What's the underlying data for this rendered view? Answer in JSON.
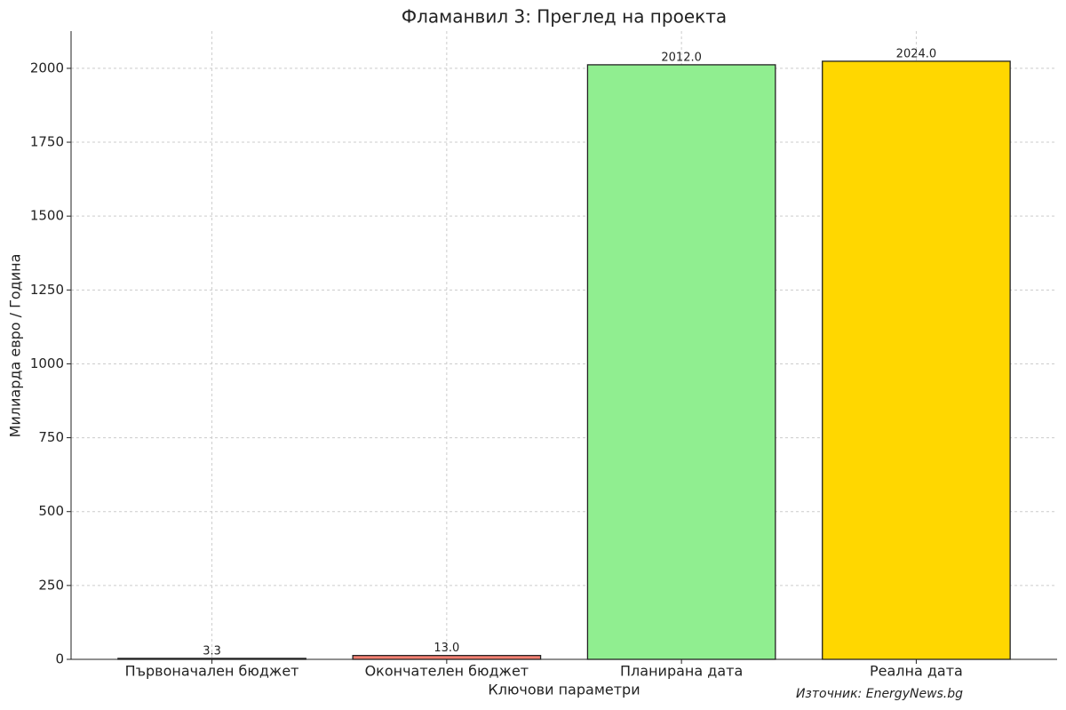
{
  "chart_data": {
    "type": "bar",
    "title": "Фламанвил 3: Преглед на проекта",
    "x_label": "Ключови параметри",
    "y_label": "Милиарда евро / Година",
    "annotation": "Източник: EnergyNews.bg",
    "categories": [
      "Първоначален бюджет",
      "Окончателен бюджет",
      "Планирана дата",
      "Реална дата"
    ],
    "values": [
      3.3,
      13.0,
      2012.0,
      2024.0
    ],
    "value_labels": [
      "3.3",
      "13.0",
      "2012.0",
      "2024.0"
    ],
    "colors": [
      "#87ceeb",
      "#fa8072",
      "#90ee90",
      "#ffd700"
    ],
    "ylim": [
      0,
      2126
    ],
    "yticks": [
      0,
      250,
      500,
      750,
      1000,
      1250,
      1500,
      1750,
      2000
    ],
    "grid": true
  }
}
